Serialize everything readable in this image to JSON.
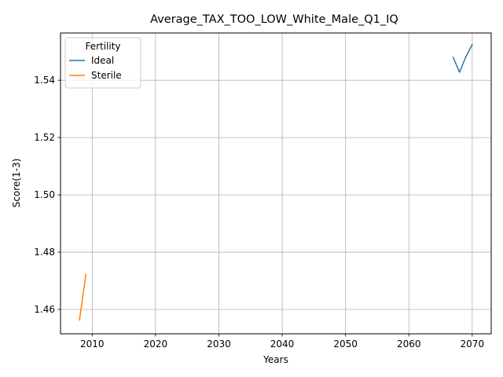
{
  "chart_data": {
    "type": "line",
    "title": "Average_TAX_TOO_LOW_White_Male_Q1_IQ",
    "xlabel": "Years",
    "ylabel": "Score(1-3)",
    "xlim": [
      2005,
      2073
    ],
    "ylim": [
      1.4515,
      1.5565
    ],
    "xticks": [
      2010,
      2020,
      2030,
      2040,
      2050,
      2060,
      2070
    ],
    "yticks": [
      1.46,
      1.48,
      1.5,
      1.52,
      1.54
    ],
    "grid": true,
    "legend": {
      "title": "Fertility",
      "placement": "top-left"
    },
    "series": [
      {
        "name": "Ideal",
        "color": "#1f77b4",
        "x": [
          2067,
          2068,
          2069,
          2070
        ],
        "y": [
          1.548,
          1.5428,
          1.5482,
          1.5525
        ]
      },
      {
        "name": "Sterile",
        "color": "#ff7f0e",
        "x": [
          2008,
          2009
        ],
        "y": [
          1.4563,
          1.4722
        ]
      }
    ]
  }
}
